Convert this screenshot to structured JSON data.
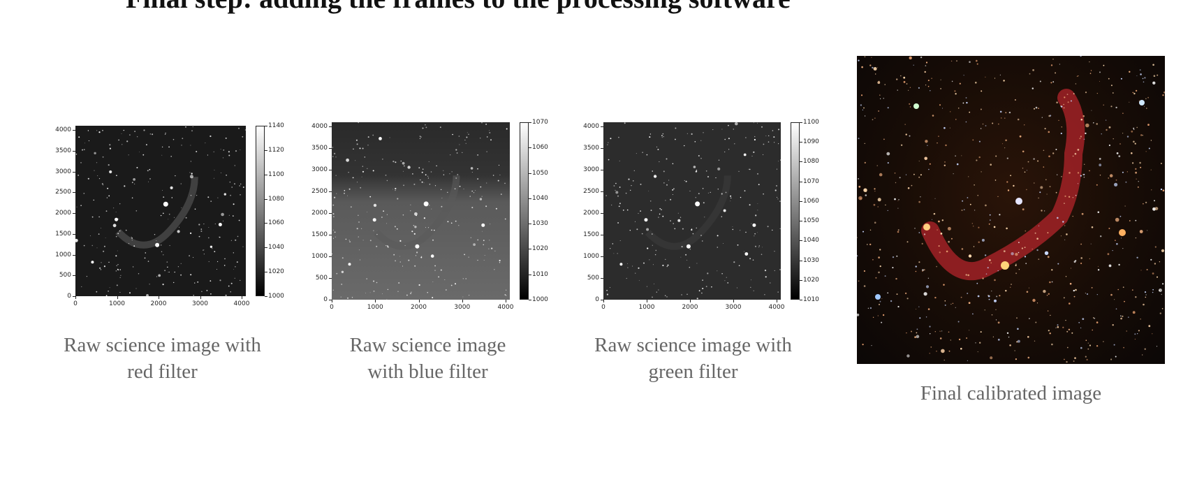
{
  "heading": "Final step: adding the frames to the processing software",
  "panels": [
    {
      "caption": "Raw science image with red filter",
      "caption_lines": [
        "Raw science image with",
        "red filter"
      ],
      "axis_ticks": [
        "0",
        "500",
        "1000",
        "1500",
        "2000",
        "2500",
        "3000",
        "3500",
        "4000"
      ],
      "x_ticks": [
        "0",
        "1000",
        "2000",
        "3000",
        "4000"
      ],
      "colorbar_ticks": [
        "1000",
        "1020",
        "1040",
        "1060",
        "1080",
        "1100",
        "1120",
        "1140"
      ]
    },
    {
      "caption": "Raw science image with blue filter",
      "caption_lines": [
        "Raw science image",
        "with blue filter"
      ],
      "axis_ticks": [
        "0",
        "500",
        "1000",
        "1500",
        "2000",
        "2500",
        "3000",
        "3500",
        "4000"
      ],
      "x_ticks": [
        "0",
        "1000",
        "2000",
        "3000",
        "4000"
      ],
      "colorbar_ticks": [
        "1000",
        "1010",
        "1020",
        "1030",
        "1040",
        "1050",
        "1060",
        "1070"
      ]
    },
    {
      "caption": "Raw science image with green filter",
      "caption_lines": [
        "Raw science image with",
        "green filter"
      ],
      "axis_ticks": [
        "0",
        "500",
        "1000",
        "1500",
        "2000",
        "2500",
        "3000",
        "3500",
        "4000"
      ],
      "x_ticks": [
        "0",
        "1000",
        "2000",
        "3000",
        "4000"
      ],
      "colorbar_ticks": [
        "1010",
        "1020",
        "1030",
        "1040",
        "1050",
        "1060",
        "1070",
        "1080",
        "1090",
        "1100"
      ]
    }
  ],
  "final": {
    "caption": "Final calibrated image"
  }
}
